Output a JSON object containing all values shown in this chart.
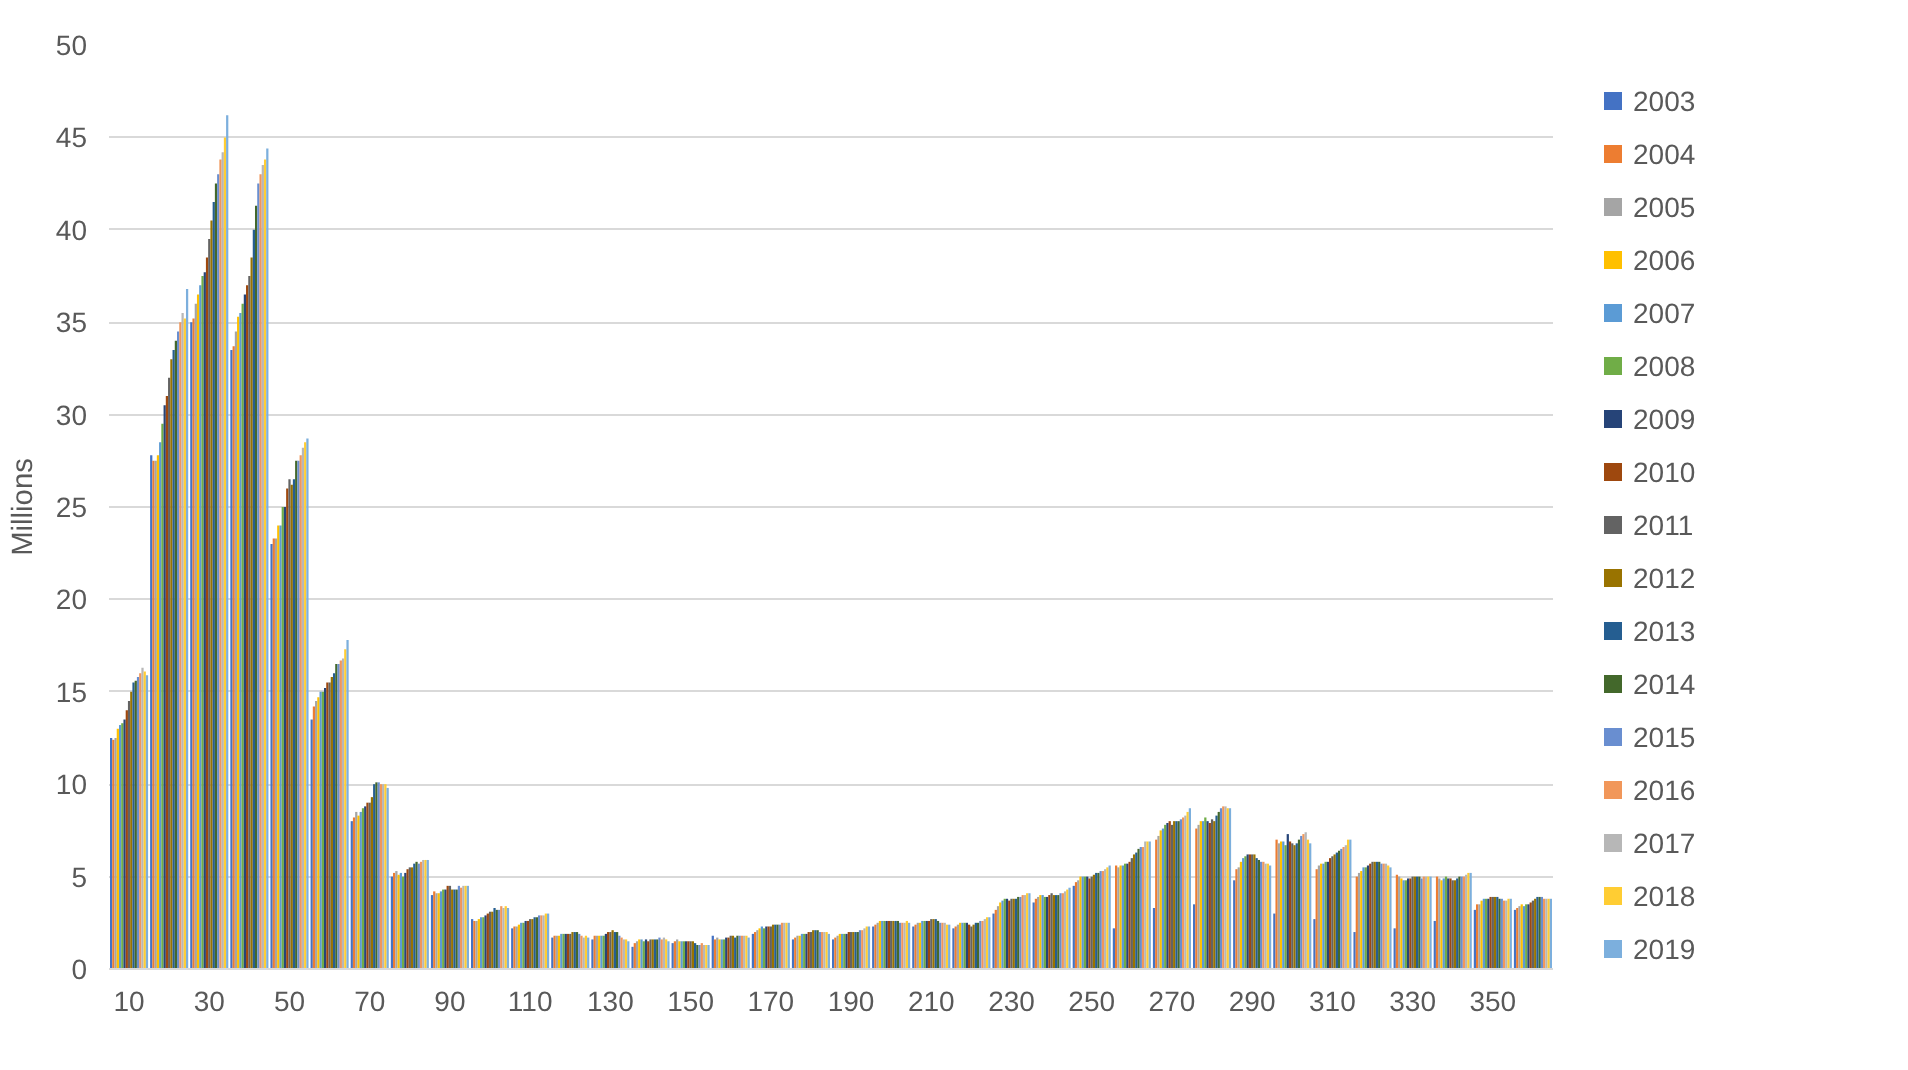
{
  "chart_data": {
    "type": "bar",
    "ylabel": "Millions",
    "categories": [
      "10",
      null,
      "30",
      null,
      "50",
      null,
      "70",
      null,
      "90",
      null,
      "110",
      null,
      "130",
      null,
      "150",
      null,
      "170",
      null,
      "190",
      null,
      "210",
      null,
      "230",
      null,
      "250",
      null,
      "270",
      null,
      "290",
      null,
      "310",
      null,
      "330",
      null,
      "350",
      null
    ],
    "ylim": [
      0,
      50
    ],
    "yticks": [
      0,
      5,
      10,
      15,
      20,
      25,
      30,
      35,
      40,
      45,
      50
    ],
    "grid": "y",
    "legend": "right",
    "series": [
      {
        "name": "2003",
        "color": "#4472c4",
        "values": [
          12.5,
          27.8,
          35,
          33.5,
          23,
          13.5,
          8,
          5,
          4,
          2.7,
          2.2,
          1.7,
          1.6,
          1.2,
          1.4,
          1.8,
          1.9,
          1.6,
          1.6,
          2.3,
          2.3,
          2.2,
          3,
          3.6,
          4.5,
          2.2,
          3.3,
          3.5,
          4.8,
          3,
          2.7,
          2,
          2.2,
          2.6,
          3.2,
          3.2
        ]
      },
      {
        "name": "2004",
        "color": "#ed7d31",
        "values": [
          12.4,
          27.5,
          35.2,
          33.7,
          23.3,
          14.2,
          8.2,
          5.2,
          4.2,
          2.6,
          2.3,
          1.8,
          1.8,
          1.4,
          1.5,
          1.6,
          2,
          1.7,
          1.7,
          2.4,
          2.4,
          2.3,
          3.2,
          3.8,
          4.7,
          5.6,
          7,
          7.6,
          5.4,
          7,
          5.4,
          5,
          5.1,
          5,
          3.5,
          3.3
        ]
      },
      {
        "name": "2005",
        "color": "#a5a5a5",
        "values": [
          12.5,
          27.5,
          36,
          34.5,
          23.3,
          14.5,
          8.5,
          5.3,
          4.1,
          2.6,
          2.3,
          1.8,
          1.8,
          1.5,
          1.6,
          1.7,
          2.1,
          1.8,
          1.8,
          2.5,
          2.5,
          2.4,
          3.4,
          3.9,
          4.8,
          5.5,
          7.2,
          7.8,
          5.5,
          6.8,
          5.6,
          5.2,
          5,
          4.9,
          3.5,
          3.4
        ]
      },
      {
        "name": "2006",
        "color": "#ffc000",
        "values": [
          13,
          27.8,
          36.5,
          35.3,
          24,
          14.7,
          8.3,
          5.1,
          4.1,
          2.7,
          2.4,
          1.8,
          1.8,
          1.6,
          1.5,
          1.6,
          2.2,
          1.8,
          1.9,
          2.6,
          2.5,
          2.5,
          3.6,
          4,
          5,
          5.6,
          7.5,
          8,
          5.8,
          6.9,
          5.7,
          5.3,
          4.9,
          4.8,
          3.7,
          3.5
        ]
      },
      {
        "name": "2007",
        "color": "#5b9bd5",
        "values": [
          13.2,
          28.5,
          37,
          35.5,
          24,
          15,
          8.5,
          5.2,
          4.2,
          2.8,
          2.5,
          1.9,
          1.8,
          1.6,
          1.5,
          1.6,
          2.3,
          1.9,
          1.9,
          2.6,
          2.6,
          2.5,
          3.7,
          4,
          5,
          5.6,
          7.6,
          8,
          6,
          6.9,
          5.7,
          5.5,
          4.8,
          4.9,
          3.8,
          3.4
        ]
      },
      {
        "name": "2008",
        "color": "#70ad47",
        "values": [
          13.3,
          29.5,
          37.5,
          36,
          25,
          15,
          8.7,
          5,
          4.3,
          2.8,
          2.5,
          1.9,
          1.8,
          1.5,
          1.5,
          1.6,
          2.2,
          1.9,
          1.9,
          2.6,
          2.6,
          2.5,
          3.8,
          3.9,
          5,
          5.7,
          7.8,
          8.2,
          6.1,
          6.7,
          5.8,
          5.5,
          4.8,
          5,
          3.8,
          3.5
        ]
      },
      {
        "name": "2009",
        "color": "#264478",
        "values": [
          13.5,
          30.5,
          37.7,
          36.5,
          25,
          15.2,
          8.8,
          5.2,
          4.3,
          2.9,
          2.6,
          1.9,
          1.9,
          1.6,
          1.5,
          1.7,
          2.3,
          1.9,
          1.9,
          2.6,
          2.6,
          2.5,
          3.8,
          3.9,
          5,
          5.7,
          7.9,
          8,
          6.2,
          7.3,
          5.8,
          5.6,
          4.9,
          4.9,
          3.8,
          3.5
        ]
      },
      {
        "name": "2010",
        "color": "#9e480e",
        "values": [
          14,
          31,
          38.5,
          37,
          26,
          15.5,
          9,
          5.4,
          4.5,
          3,
          2.6,
          1.9,
          2,
          1.5,
          1.5,
          1.7,
          2.3,
          2,
          2,
          2.6,
          2.6,
          2.4,
          3.7,
          4,
          4.9,
          5.8,
          8,
          7.9,
          6.2,
          6.9,
          6,
          5.7,
          4.9,
          4.9,
          3.9,
          3.6
        ]
      },
      {
        "name": "2011",
        "color": "#636363",
        "values": [
          14.5,
          32,
          39.5,
          37.5,
          26.5,
          15.5,
          9,
          5.5,
          4.5,
          3.1,
          2.7,
          1.9,
          2,
          1.6,
          1.5,
          1.8,
          2.3,
          2,
          2,
          2.6,
          2.7,
          2.3,
          3.8,
          4.1,
          5,
          6,
          7.8,
          8.1,
          6.2,
          6.8,
          6.1,
          5.8,
          5,
          4.8,
          3.9,
          3.7
        ]
      },
      {
        "name": "2012",
        "color": "#997300",
        "values": [
          15,
          33,
          40.5,
          38.5,
          26.2,
          15.8,
          9.3,
          5.5,
          4.3,
          3.1,
          2.7,
          2,
          2.1,
          1.6,
          1.5,
          1.8,
          2.4,
          2.1,
          2,
          2.6,
          2.7,
          2.4,
          3.8,
          4,
          5.1,
          6.2,
          8,
          8,
          6.2,
          6.7,
          6.2,
          5.8,
          5,
          4.8,
          3.9,
          3.8
        ]
      },
      {
        "name": "2013",
        "color": "#255e91",
        "values": [
          15.5,
          33.5,
          41.5,
          40,
          26.5,
          16,
          10,
          5.7,
          4.3,
          3.3,
          2.8,
          2,
          2,
          1.6,
          1.4,
          1.7,
          2.4,
          2.1,
          2,
          2.6,
          2.7,
          2.5,
          3.8,
          4,
          5.2,
          6.3,
          8,
          8.3,
          6,
          6.8,
          6.3,
          5.8,
          5,
          4.9,
          3.9,
          3.9
        ]
      },
      {
        "name": "2014",
        "color": "#43682b",
        "values": [
          15.6,
          34,
          42.5,
          41.3,
          27.5,
          16.5,
          10.1,
          5.8,
          4.3,
          3.2,
          2.8,
          2,
          2,
          1.6,
          1.3,
          1.8,
          2.4,
          2.1,
          2,
          2.6,
          2.6,
          2.5,
          3.9,
          4,
          5.2,
          6.5,
          8,
          8.5,
          5.9,
          7,
          6.4,
          5.8,
          5,
          5,
          3.8,
          3.9
        ]
      },
      {
        "name": "2015",
        "color": "#698ed0",
        "values": [
          15.8,
          34.5,
          43,
          42.5,
          27.5,
          16.5,
          10.1,
          5.7,
          4.5,
          3.2,
          2.9,
          1.9,
          1.8,
          1.7,
          1.3,
          1.8,
          2.4,
          2,
          2.1,
          2.5,
          2.5,
          2.6,
          3.9,
          4.1,
          5.3,
          6.6,
          8.1,
          8.7,
          5.8,
          7.2,
          6.5,
          5.7,
          4.9,
          5,
          3.8,
          3.9
        ]
      },
      {
        "name": "2016",
        "color": "#f1975a",
        "values": [
          16,
          35,
          43.8,
          43,
          27.8,
          16.7,
          10,
          5.8,
          4.4,
          3.4,
          2.9,
          1.8,
          1.7,
          1.6,
          1.4,
          1.8,
          2.5,
          2,
          2.1,
          2.5,
          2.5,
          2.6,
          4,
          4.1,
          5.3,
          6.6,
          8.2,
          8.8,
          5.8,
          7.3,
          6.6,
          5.7,
          5,
          5,
          3.7,
          3.8
        ]
      },
      {
        "name": "2017",
        "color": "#b7b7b7",
        "values": [
          16.3,
          35.5,
          44.2,
          43.5,
          28.2,
          16.8,
          10,
          5.9,
          4.5,
          3.3,
          2.9,
          1.7,
          1.6,
          1.7,
          1.3,
          1.8,
          2.5,
          2,
          2.2,
          2.5,
          2.5,
          2.7,
          4,
          4.2,
          5.4,
          6.9,
          8.3,
          8.8,
          5.7,
          7.4,
          6.7,
          5.7,
          5,
          5.1,
          3.7,
          3.8
        ]
      },
      {
        "name": "2018",
        "color": "#ffcd33",
        "values": [
          16.1,
          35.2,
          45,
          43.8,
          28.5,
          17.3,
          10,
          5.9,
          4.5,
          3.4,
          3,
          1.8,
          1.6,
          1.6,
          1.3,
          1.8,
          2.5,
          2,
          2.3,
          2.6,
          2.4,
          2.8,
          4.1,
          4.3,
          5.5,
          6.9,
          8.5,
          8.7,
          5.7,
          7,
          7,
          5.6,
          5,
          5.2,
          3.8,
          3.8
        ]
      },
      {
        "name": "2019",
        "color": "#7cafdd",
        "values": [
          15.9,
          36.8,
          46.2,
          44.4,
          28.7,
          17.8,
          9.8,
          5.9,
          4.5,
          3.3,
          3,
          1.7,
          1.5,
          1.5,
          1.3,
          1.7,
          2.5,
          1.9,
          2.3,
          2.5,
          2.4,
          2.8,
          4.1,
          4.4,
          5.6,
          6.9,
          8.7,
          8.7,
          5.6,
          6.8,
          7,
          5.5,
          5,
          5.2,
          3.8,
          3.8
        ]
      }
    ]
  }
}
